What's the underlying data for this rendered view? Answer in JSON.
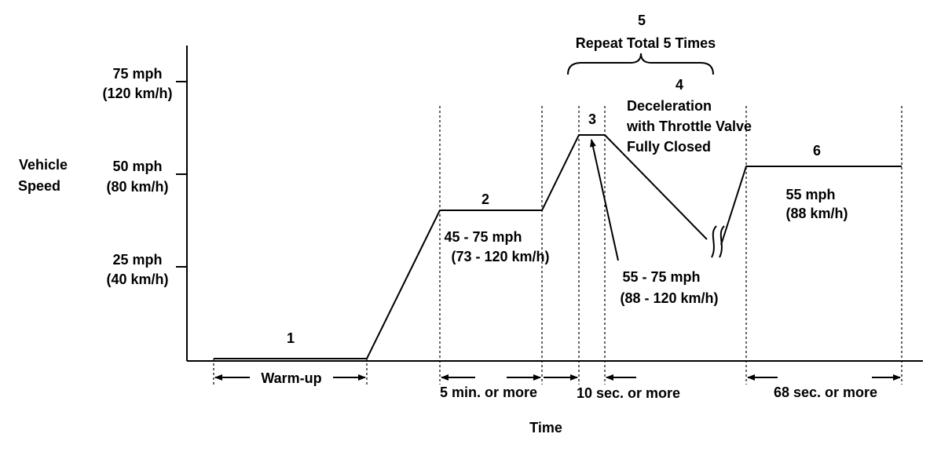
{
  "axes": {
    "y_label_line1": "Vehicle",
    "y_label_line2": "Speed",
    "x_label": "Time",
    "ticks": [
      {
        "mph": "75 mph",
        "kmh": "(120 km/h)"
      },
      {
        "mph": "50 mph",
        "kmh": "(80 km/h)"
      },
      {
        "mph": "25 mph",
        "kmh": "(40 km/h)"
      }
    ]
  },
  "phases": {
    "p1": "1",
    "p2": "2",
    "p3": "3",
    "p4": "4",
    "p4_desc1": "Deceleration",
    "p4_desc2": "with Throttle Valve",
    "p4_desc3": "Fully Closed",
    "p5": "5",
    "p5_desc": "Repeat Total 5 Times",
    "p6": "6"
  },
  "speeds": {
    "p2_mph": "45 - 75 mph",
    "p2_kmh": "(73 - 120 km/h)",
    "p3_mph": "55 - 75 mph",
    "p3_kmh": "(88 - 120 km/h)",
    "p6_mph": "55 mph",
    "p6_kmh": "(88 km/h)"
  },
  "durations": {
    "warmup": "Warm-up",
    "p2": "5 min. or more",
    "p3": "10 sec. or more",
    "p6": "68 sec. or more"
  }
}
